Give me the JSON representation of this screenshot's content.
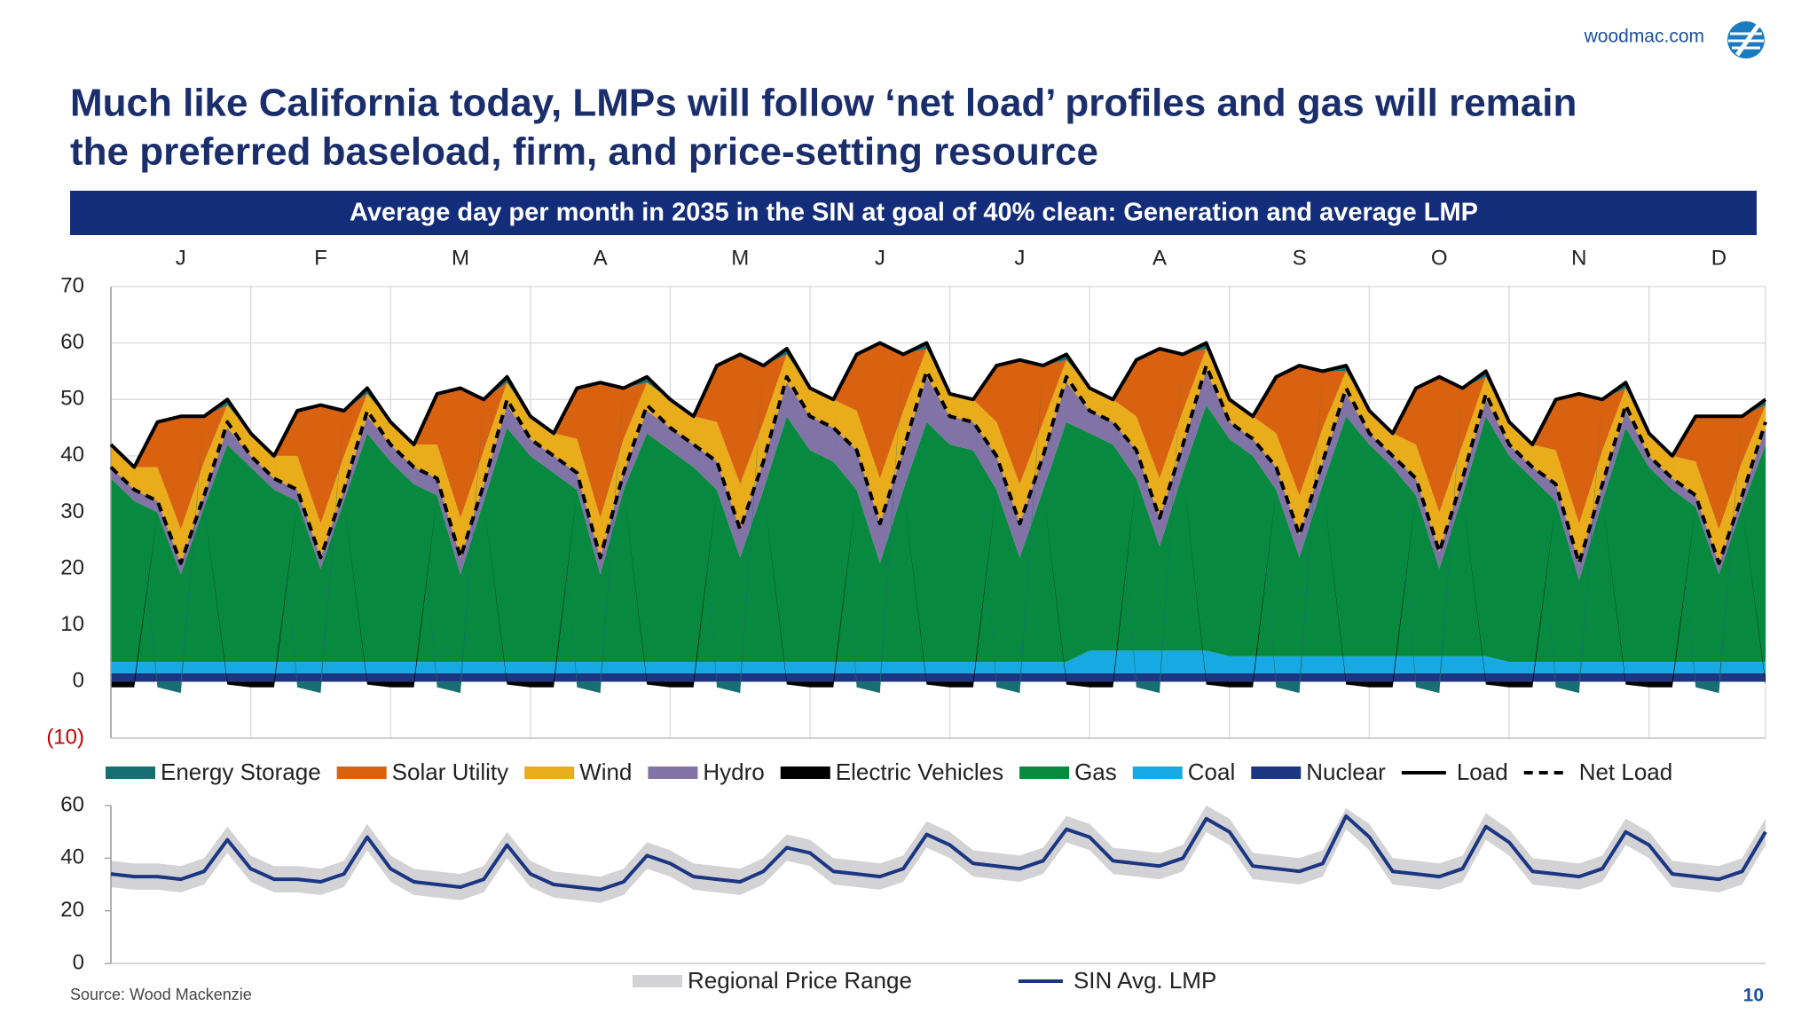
{
  "header": {
    "title": [
      "Much like California today, LMPs will follow ‘net load’ profiles and gas will remain",
      "the preferred baseload, firm, and price-setting resource"
    ],
    "site": "woodmac.com"
  },
  "chart_data": [
    {
      "type": "stacked_area",
      "title": "Average day per month in 2035 in the SIN at goal of 40% clean: Generation and average LMP",
      "categories": [
        null,
        null,
        null,
        "J",
        null,
        null,
        null,
        null,
        null,
        "F",
        null,
        null,
        null,
        null,
        null,
        "M",
        null,
        null,
        null,
        null,
        null,
        "A",
        null,
        null,
        null,
        null,
        null,
        "M",
        null,
        null,
        null,
        null,
        null,
        "J",
        null,
        null,
        null,
        null,
        null,
        "J",
        null,
        null,
        null,
        null,
        null,
        "A",
        null,
        null,
        null,
        null,
        null,
        "S",
        null,
        null,
        null,
        null,
        null,
        "O",
        null,
        null,
        null,
        null,
        null,
        "N",
        null,
        null,
        null,
        null,
        null,
        "D",
        null,
        null
      ],
      "ylim": [
        -10,
        70
      ],
      "yticks": [
        {
          "value": -10,
          "label": "(10)"
        },
        0,
        10,
        20,
        30,
        40,
        50,
        60,
        70
      ],
      "grid": true,
      "series": [
        {
          "name": "Energy Storage",
          "kind": "area",
          "color": "#176f72",
          "values": [
            0,
            0,
            -1,
            -2,
            0,
            1,
            0,
            0,
            -1,
            -2,
            0,
            1,
            0,
            0,
            -1,
            -2,
            0,
            1,
            0,
            0,
            -1,
            -2,
            0,
            1,
            0,
            0,
            -1,
            -2,
            0,
            1,
            0,
            0,
            -1,
            -2,
            0,
            1,
            0,
            0,
            -1,
            -2,
            0,
            1,
            0,
            0,
            -1,
            -2,
            0,
            1,
            0,
            0,
            -1,
            -2,
            0,
            1,
            0,
            0,
            -1,
            -2,
            0,
            1,
            0,
            0,
            -1,
            -2,
            0,
            1,
            0,
            0,
            -1,
            -2,
            0,
            1
          ]
        },
        {
          "name": "Solar Utility",
          "kind": "area",
          "color": "#d8620f",
          "values": [
            0,
            0,
            8,
            20,
            8,
            0,
            0,
            0,
            8,
            21,
            8,
            0,
            0,
            0,
            9,
            23,
            9,
            0,
            0,
            0,
            9,
            24,
            9,
            0,
            0,
            0,
            10,
            23,
            10,
            0,
            0,
            0,
            10,
            24,
            10,
            0,
            0,
            0,
            10,
            22,
            10,
            0,
            0,
            0,
            10,
            23,
            10,
            0,
            0,
            0,
            10,
            23,
            10,
            0,
            0,
            0,
            10,
            24,
            10,
            0,
            0,
            0,
            9,
            23,
            9,
            0,
            0,
            0,
            8,
            20,
            8,
            0
          ]
        },
        {
          "name": "Wind",
          "kind": "area",
          "color": "#e9ad1b",
          "values": [
            4,
            4,
            6,
            6,
            6,
            4,
            4,
            4,
            6,
            6,
            6,
            4,
            4,
            4,
            6,
            7,
            6,
            4,
            4,
            4,
            6,
            7,
            6,
            5,
            5,
            5,
            7,
            8,
            7,
            5,
            5,
            5,
            7,
            8,
            7,
            5,
            4,
            4,
            6,
            7,
            6,
            4,
            4,
            4,
            6,
            7,
            6,
            4,
            4,
            4,
            6,
            7,
            6,
            4,
            4,
            4,
            6,
            7,
            6,
            4,
            4,
            4,
            6,
            7,
            6,
            4,
            4,
            4,
            6,
            6,
            6,
            4
          ]
        },
        {
          "name": "Hydro",
          "kind": "area",
          "color": "#8273a6",
          "values": [
            2,
            2,
            2,
            2,
            2,
            3,
            2,
            2,
            2,
            2,
            2,
            3,
            3,
            3,
            3,
            3,
            3,
            4,
            3,
            3,
            3,
            3,
            3,
            4,
            4,
            4,
            5,
            5,
            5,
            6,
            6,
            6,
            7,
            7,
            7,
            8,
            5,
            5,
            6,
            6,
            6,
            7,
            4,
            4,
            5,
            5,
            5,
            6,
            3,
            3,
            4,
            4,
            4,
            4,
            2,
            2,
            3,
            3,
            3,
            3,
            2,
            2,
            3,
            3,
            3,
            3,
            2,
            2,
            2,
            2,
            2,
            3
          ]
        },
        {
          "name": "Electric Vehicles",
          "kind": "area",
          "color": "#000000",
          "values": [
            -1,
            -1,
            0,
            0,
            0,
            -0.5,
            -1,
            -1,
            0,
            0,
            0,
            -0.5,
            -1,
            -1,
            0,
            0,
            0,
            -0.5,
            -1,
            -1,
            0,
            0,
            0,
            -0.5,
            -1,
            -1,
            0,
            0,
            0,
            -0.5,
            -1,
            -1,
            0,
            0,
            0,
            -0.5,
            -1,
            -1,
            0,
            0,
            0,
            -0.5,
            -1,
            -1,
            0,
            0,
            0,
            -0.5,
            -1,
            -1,
            0,
            0,
            0,
            -0.5,
            -1,
            -1,
            0,
            0,
            0,
            -0.5,
            -1,
            -1,
            0,
            0,
            0,
            -0.5,
            -1,
            -1,
            0,
            0,
            0,
            -0.5
          ]
        },
        {
          "name": "Gas",
          "kind": "area",
          "color": "#078a3f",
          "values": [
            32.5,
            28.5,
            26.5,
            15.5,
            27.5,
            38.5,
            34.5,
            30.5,
            28.5,
            16.5,
            28.5,
            40.5,
            35.5,
            31.5,
            29.5,
            15.5,
            28.5,
            41.5,
            36.5,
            33.5,
            30.5,
            15.5,
            30.5,
            40.5,
            37.5,
            34.5,
            30.5,
            18.5,
            30.5,
            43.5,
            37.5,
            35.5,
            30.5,
            17.5,
            30.5,
            42.5,
            38.5,
            37.5,
            30.5,
            18.5,
            30.5,
            42.5,
            38.5,
            36.5,
            30.5,
            18.5,
            31.5,
            43.5,
            38.5,
            35.5,
            29.5,
            17.5,
            30.5,
            42.5,
            37.5,
            33.5,
            28.5,
            15.5,
            28.5,
            42.5,
            36.5,
            32.5,
            28.5,
            14.5,
            28.5,
            41.5,
            34.5,
            30.5,
            27.5,
            15.5,
            27.5,
            38.5
          ]
        },
        {
          "name": "Coal",
          "kind": "area",
          "color": "#17a9e1",
          "values": [
            2,
            2,
            2,
            2,
            2,
            2,
            2,
            2,
            2,
            2,
            2,
            2,
            2,
            2,
            2,
            2,
            2,
            2,
            2,
            2,
            2,
            2,
            2,
            2,
            2,
            2,
            2,
            2,
            2,
            2,
            2,
            2,
            2,
            2,
            2,
            2,
            2,
            2,
            2,
            2,
            2,
            2,
            4,
            4,
            4,
            4,
            4,
            4,
            3,
            3,
            3,
            3,
            3,
            3,
            3,
            3,
            3,
            3,
            3,
            3,
            2,
            2,
            2,
            2,
            2,
            2,
            2,
            2,
            2,
            2,
            2,
            2
          ]
        },
        {
          "name": "Nuclear",
          "kind": "area",
          "color": "#1b3682",
          "values": [
            1.5,
            1.5,
            1.5,
            1.5,
            1.5,
            1.5,
            1.5,
            1.5,
            1.5,
            1.5,
            1.5,
            1.5,
            1.5,
            1.5,
            1.5,
            1.5,
            1.5,
            1.5,
            1.5,
            1.5,
            1.5,
            1.5,
            1.5,
            1.5,
            1.5,
            1.5,
            1.5,
            1.5,
            1.5,
            1.5,
            1.5,
            1.5,
            1.5,
            1.5,
            1.5,
            1.5,
            1.5,
            1.5,
            1.5,
            1.5,
            1.5,
            1.5,
            1.5,
            1.5,
            1.5,
            1.5,
            1.5,
            1.5,
            1.5,
            1.5,
            1.5,
            1.5,
            1.5,
            1.5,
            1.5,
            1.5,
            1.5,
            1.5,
            1.5,
            1.5,
            1.5,
            1.5,
            1.5,
            1.5,
            1.5,
            1.5,
            1.5,
            1.5,
            1.5,
            1.5,
            1.5,
            1.5
          ]
        },
        {
          "name": "Load",
          "kind": "line",
          "color": "#000000",
          "dash": false,
          "values": [
            42,
            38,
            46,
            47,
            47,
            50,
            44,
            40,
            48,
            49,
            48,
            52,
            46,
            42,
            51,
            52,
            50,
            54,
            47,
            44,
            52,
            53,
            52,
            54,
            50,
            47,
            56,
            58,
            56,
            59,
            52,
            50,
            58,
            60,
            58,
            60,
            51,
            50,
            56,
            57,
            56,
            58,
            52,
            50,
            57,
            59,
            58,
            60,
            50,
            47,
            54,
            56,
            55,
            56,
            48,
            44,
            52,
            54,
            52,
            55,
            46,
            42,
            50,
            51,
            50,
            53,
            44,
            40,
            47,
            47,
            47,
            50
          ]
        },
        {
          "name": "Net Load",
          "kind": "line",
          "color": "#000000",
          "dash": true,
          "values": [
            38,
            34,
            32,
            21,
            33,
            46,
            40,
            36,
            34,
            22,
            34,
            48,
            42,
            38,
            36,
            22,
            35,
            50,
            43,
            40,
            37,
            22,
            37,
            49,
            45,
            42,
            39,
            27,
            39,
            54,
            47,
            45,
            41,
            28,
            41,
            55,
            47,
            46,
            40,
            28,
            40,
            54,
            48,
            46,
            41,
            29,
            42,
            56,
            46,
            43,
            38,
            26,
            39,
            52,
            44,
            40,
            36,
            23,
            36,
            51,
            42,
            38,
            35,
            21,
            35,
            49,
            40,
            36,
            33,
            21,
            33,
            46
          ]
        }
      ]
    },
    {
      "type": "line",
      "ylim": [
        0,
        60
      ],
      "yticks": [
        0,
        20,
        40,
        60
      ],
      "grid": false,
      "series": [
        {
          "name": "Regional Price Range",
          "kind": "band",
          "color": "#d3d3d5",
          "low": [
            29,
            28,
            28,
            27,
            30,
            42,
            31,
            27,
            27,
            26,
            29,
            43,
            31,
            26,
            25,
            24,
            27,
            40,
            29,
            25,
            24,
            23,
            26,
            36,
            33,
            28,
            27,
            26,
            30,
            39,
            37,
            30,
            29,
            28,
            31,
            44,
            40,
            33,
            32,
            31,
            34,
            46,
            43,
            34,
            33,
            32,
            35,
            50,
            45,
            32,
            31,
            30,
            33,
            51,
            43,
            30,
            29,
            28,
            31,
            47,
            41,
            30,
            29,
            28,
            31,
            45,
            40,
            29,
            28,
            27,
            30,
            45
          ],
          "high": [
            39,
            38,
            38,
            37,
            40,
            52,
            41,
            37,
            37,
            36,
            39,
            53,
            41,
            36,
            35,
            34,
            37,
            50,
            39,
            35,
            34,
            33,
            36,
            46,
            43,
            38,
            37,
            36,
            40,
            49,
            47,
            40,
            39,
            38,
            41,
            54,
            50,
            43,
            42,
            41,
            44,
            56,
            53,
            44,
            43,
            42,
            45,
            60,
            55,
            42,
            41,
            40,
            43,
            59,
            53,
            40,
            39,
            38,
            41,
            57,
            51,
            40,
            39,
            38,
            41,
            55,
            50,
            39,
            38,
            37,
            40,
            55
          ]
        },
        {
          "name": "SIN Avg. LMP",
          "kind": "line",
          "color": "#1b3682",
          "dash": false,
          "values": [
            34,
            33,
            33,
            32,
            35,
            47,
            36,
            32,
            32,
            31,
            34,
            48,
            36,
            31,
            30,
            29,
            32,
            45,
            34,
            30,
            29,
            28,
            31,
            41,
            38,
            33,
            32,
            31,
            35,
            44,
            42,
            35,
            34,
            33,
            36,
            49,
            45,
            38,
            37,
            36,
            39,
            51,
            48,
            39,
            38,
            37,
            40,
            55,
            50,
            37,
            36,
            35,
            38,
            56,
            48,
            35,
            34,
            33,
            36,
            52,
            46,
            35,
            34,
            33,
            36,
            50,
            45,
            34,
            33,
            32,
            35,
            50
          ]
        }
      ]
    }
  ],
  "footer": {
    "source": "Source: Wood Mackenzie",
    "page": "10"
  }
}
